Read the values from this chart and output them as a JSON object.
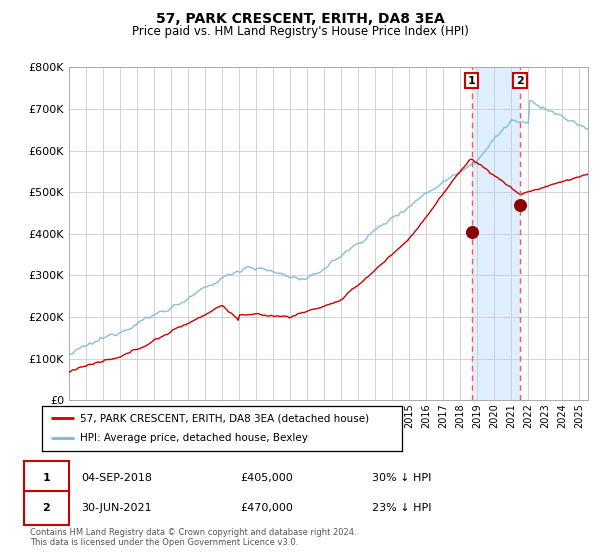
{
  "title": "57, PARK CRESCENT, ERITH, DA8 3EA",
  "subtitle": "Price paid vs. HM Land Registry's House Price Index (HPI)",
  "hpi_label": "HPI: Average price, detached house, Bexley",
  "property_label": "57, PARK CRESCENT, ERITH, DA8 3EA (detached house)",
  "sale1_date": "04-SEP-2018",
  "sale1_price": 405000,
  "sale1_pct": "30% ↓ HPI",
  "sale2_date": "30-JUN-2021",
  "sale2_price": 470000,
  "sale2_pct": "23% ↓ HPI",
  "sale1_x": 2018.67,
  "sale2_x": 2021.5,
  "hpi_color": "#7ab8d9",
  "property_color": "#cc0000",
  "marker_color": "#8b0000",
  "vline_color": "#ff5555",
  "shade_color": "#ddeeff",
  "grid_color": "#cccccc",
  "bg_color": "#ffffff",
  "ylim_max": 800000,
  "xlim_start": 1995.0,
  "xlim_end": 2025.5,
  "footer": "Contains HM Land Registry data © Crown copyright and database right 2024.\nThis data is licensed under the Open Government Licence v3.0.",
  "yticks": [
    0,
    100000,
    200000,
    300000,
    400000,
    500000,
    600000,
    700000,
    800000
  ]
}
